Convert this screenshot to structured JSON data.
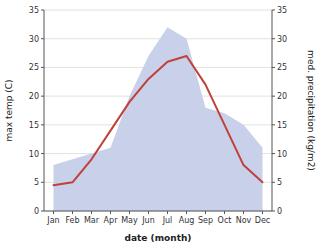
{
  "chart_data": {
    "type": "line",
    "xlabel": "date (month)",
    "ylabel": "max temp (C)",
    "y2label": "med. precipitation (kg/m2)",
    "categories": [
      "Jan",
      "Feb",
      "Mar",
      "Apr",
      "May",
      "Jun",
      "Jul",
      "Aug",
      "Sep",
      "Oct",
      "Nov",
      "Dec"
    ],
    "series": [
      {
        "type": "area",
        "axis": "y2",
        "color": "#c8d0ea",
        "values": [
          8.0,
          9.0,
          10.0,
          11.0,
          20.0,
          27.0,
          32.0,
          30.0,
          18.0,
          17.0,
          15.0,
          11.0
        ]
      },
      {
        "type": "line",
        "color": "#c0403a",
        "values": [
          4.5,
          5.0,
          9.0,
          14.0,
          19.0,
          23.0,
          26.0,
          27.0,
          22.0,
          15.0,
          8.0,
          5.0
        ]
      }
    ],
    "ylim": [
      0,
      35
    ],
    "yticks": [
      0,
      5,
      10,
      15,
      20,
      25,
      30,
      35
    ],
    "y2lim": [
      0,
      35
    ],
    "y2ticks": [
      0,
      5,
      10,
      15,
      20,
      25,
      30,
      35
    ],
    "grid": true
  }
}
